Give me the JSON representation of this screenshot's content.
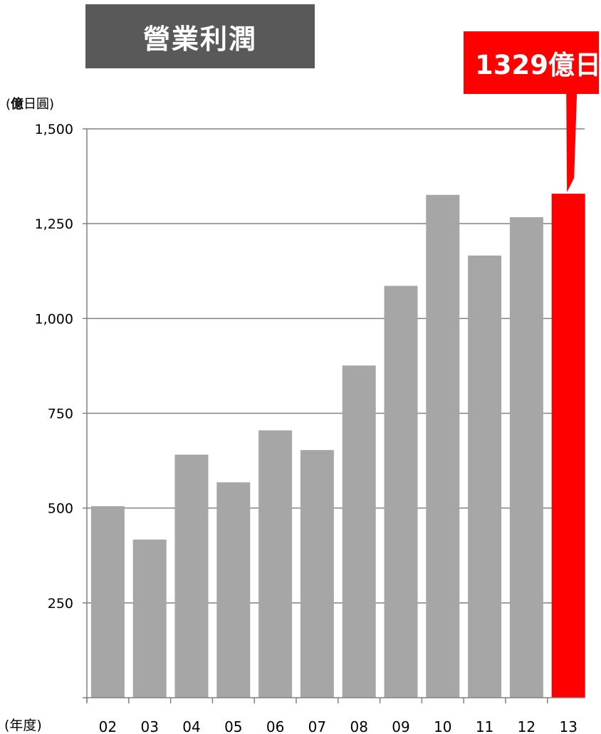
{
  "title": "營業利潤",
  "callout": {
    "label": "1329億日",
    "color": "#ff0000"
  },
  "y_unit": {
    "bold_part": "億",
    "rest": "日圓"
  },
  "x_unit": "(年度)",
  "colors": {
    "bar": "#a6a6a6",
    "highlight_bar": "#ff0000",
    "grid": "#808080",
    "title_bg": "#595959"
  },
  "chart_data": {
    "type": "bar",
    "categories": [
      "02",
      "03",
      "04",
      "05",
      "06",
      "07",
      "08",
      "09",
      "10",
      "11",
      "12",
      "13"
    ],
    "values": [
      505,
      417,
      641,
      568,
      705,
      653,
      876,
      1086,
      1326,
      1166,
      1267,
      1329
    ],
    "highlight_index": 11,
    "ylim": [
      0,
      1500
    ],
    "yticks": [
      250,
      500,
      750,
      1000,
      1250,
      1500
    ],
    "ytick_labels": [
      "250",
      "500",
      "750",
      "1,000",
      "1,250",
      "1,500"
    ],
    "grid": true
  }
}
